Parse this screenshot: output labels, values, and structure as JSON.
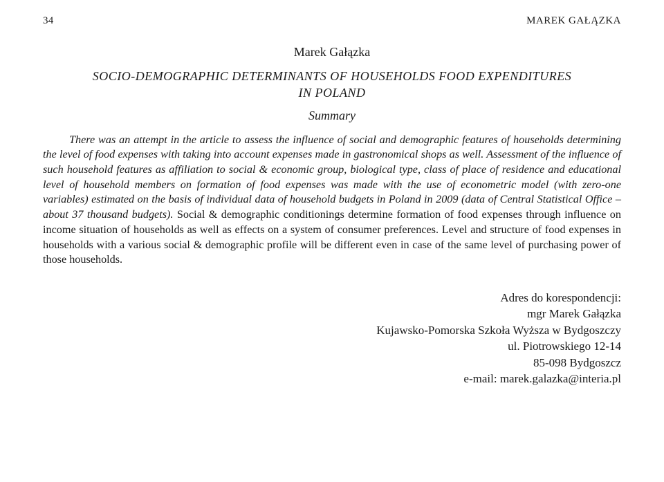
{
  "header": {
    "page_number": "34",
    "running_head": "MAREK GAŁĄZKA"
  },
  "author": "Marek Gałązka",
  "title_line1": "SOCIO-DEMOGRAPHIC DETERMINANTS OF HOUSEHOLDS FOOD EXPENDITURES",
  "title_line2": "IN POLAND",
  "summary_label": "Summary",
  "body_indent_text": "There was an attempt in the article to assess the influence of social and demographic features of households determining the level of food expenses with taking into account expenses made in gastronomical shops as well. Assessment of the influence of such household features as affiliation to social & economic group, biological type, class of place of residence and educational level of household members on formation of food expenses was made with the use of econometric model (with zero-one variables) estimated on the basis of individual data of household budgets in Poland in 2009 (data of Central Statistical Office – about 37 thousand budgets).",
  "body_tail_upright": " Social & demographic conditionings determine formation of food expenses through influence on income situation of households as well as effects on a system of consumer preferences. Level and structure of food expenses in households with a various social & demographic profile will be different even in case of the same level of purchasing power of those households.",
  "correspondence": {
    "label": "Adres do korespondencji:",
    "name": "mgr Marek Gałązka",
    "institution": "Kujawsko-Pomorska Szkoła Wyższa w Bydgoszczy",
    "street": "ul. Piotrowskiego 12-14",
    "postal": "85-098 Bydgoszcz",
    "email": "e-mail: marek.galazka@interia.pl"
  }
}
